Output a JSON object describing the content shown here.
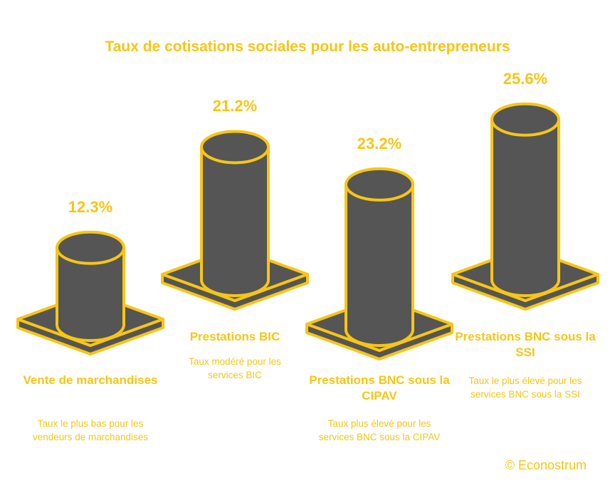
{
  "colors": {
    "accent": "#F7C614",
    "fill": "#555555"
  },
  "chart_data": {
    "type": "bar",
    "title": "Taux de cotisations sociales pour les auto-entrepreneurs",
    "categories": [
      "Vente de marchandises",
      "Prestations BIC",
      "Prestations BNC sous la CIPAV",
      "Prestations BNC sous la SSI"
    ],
    "values": [
      12.3,
      21.2,
      23.2,
      25.6
    ],
    "value_labels": [
      "12.3%",
      "21.2%",
      "23.2%",
      "25.6%"
    ],
    "descriptions": [
      "Taux le plus bas pour les vendeurs de marchandises",
      "Taux modéré pour les services BIC",
      "Taux plus élevé pour les services BNC sous la CIPAV",
      "Taux le plus élevé pour les services BNC sous la SSI"
    ]
  },
  "credit": "© Econostrum"
}
